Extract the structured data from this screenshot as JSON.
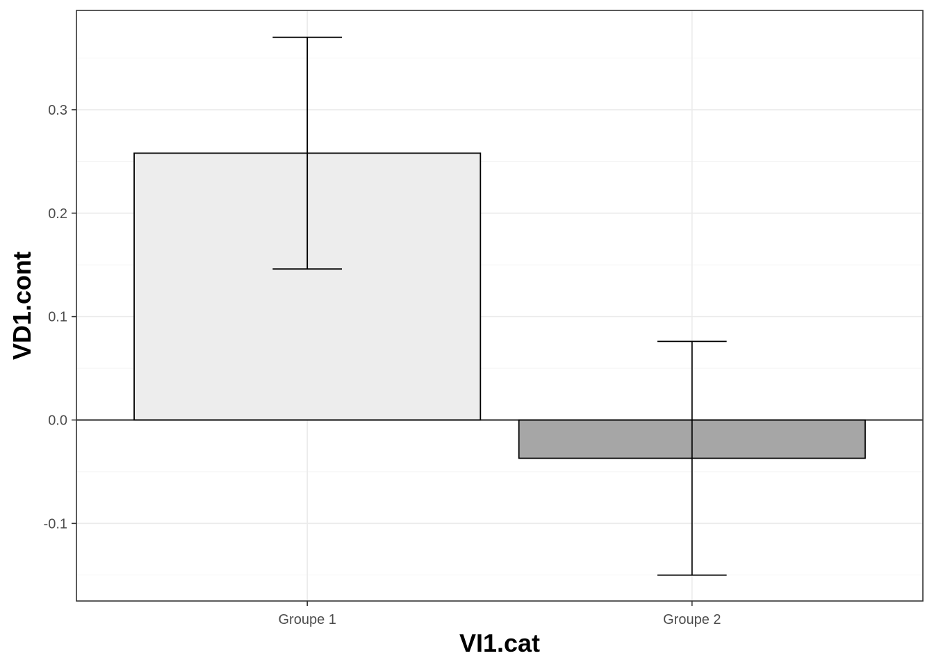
{
  "chart_data": {
    "type": "bar",
    "xlabel": "VI1.cat",
    "ylabel": "VD1.cont",
    "categories": [
      "Groupe 1",
      "Groupe 2"
    ],
    "values": [
      0.258,
      -0.037
    ],
    "error_low": [
      0.146,
      -0.15
    ],
    "error_high": [
      0.37,
      0.076
    ],
    "fill_colors": [
      "#ededed",
      "#a6a6a6"
    ],
    "ylim": [
      -0.175,
      0.396
    ],
    "yticks": [
      -0.1,
      0.0,
      0.1,
      0.2,
      0.3
    ],
    "ytick_labels": [
      "-0.1",
      "0.0",
      "0.1",
      "0.2",
      "0.3"
    ],
    "yminor": [
      -0.15,
      -0.05,
      0.05,
      0.15,
      0.25,
      0.35
    ],
    "hline": 0,
    "grid": true,
    "legend": "none"
  }
}
